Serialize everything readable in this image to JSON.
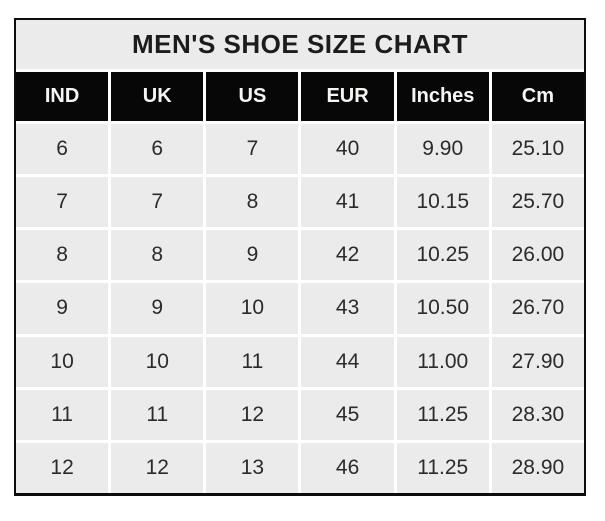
{
  "title": "MEN'S SHOE SIZE CHART",
  "chart_data": {
    "type": "table",
    "title": "MEN'S SHOE SIZE CHART",
    "columns": [
      "IND",
      "UK",
      "US",
      "EUR",
      "Inches",
      "Cm"
    ],
    "rows": [
      [
        "6",
        "6",
        "7",
        "40",
        "9.90",
        "25.10"
      ],
      [
        "7",
        "7",
        "8",
        "41",
        "10.15",
        "25.70"
      ],
      [
        "8",
        "8",
        "9",
        "42",
        "10.25",
        "26.00"
      ],
      [
        "9",
        "9",
        "10",
        "43",
        "10.50",
        "26.70"
      ],
      [
        "10",
        "10",
        "11",
        "44",
        "11.00",
        "27.90"
      ],
      [
        "11",
        "11",
        "12",
        "45",
        "11.25",
        "28.30"
      ],
      [
        "12",
        "12",
        "13",
        "46",
        "11.25",
        "28.90"
      ]
    ],
    "layout_hints": {
      "grid": "on",
      "gridline_color": "#ffffff",
      "header_style": "black background, white bold text",
      "body_style": "light gray cells"
    }
  },
  "colors": {
    "outer_border": "#0d0d0d",
    "title_bg": "#ecebeb",
    "title_text": "#1c1c1c",
    "header_bg": "#070707",
    "header_text": "#f7f5f2",
    "cell_bg": "#ecebeb",
    "cell_text": "#2b2b2b",
    "gridline": "#ffffff",
    "page_bg": "#ffffff"
  }
}
